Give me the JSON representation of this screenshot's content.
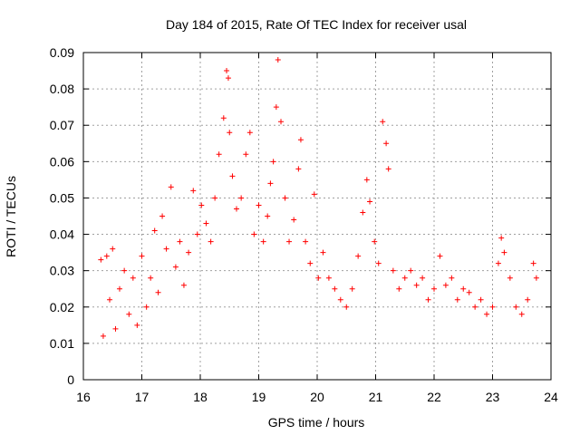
{
  "chart_data": {
    "type": "scatter",
    "title": "Day 184 of 2015, Rate Of TEC Index for receiver usal",
    "xlabel": "GPS time / hours",
    "ylabel": "ROTI / TECUs",
    "xlim": [
      16,
      24
    ],
    "ylim": [
      0,
      0.09
    ],
    "x_ticks": [
      "16",
      "17",
      "18",
      "19",
      "20",
      "21",
      "22",
      "23",
      "24"
    ],
    "y_ticks": [
      "0",
      "0.01",
      "0.02",
      "0.03",
      "0.04",
      "0.05",
      "0.06",
      "0.07",
      "0.08",
      "0.09"
    ],
    "grid": true,
    "marker": "+",
    "color": "#ff0000",
    "series": [
      {
        "name": "ROTI",
        "x": [
          16.3,
          16.34,
          16.4,
          16.45,
          16.5,
          16.55,
          16.62,
          16.7,
          16.78,
          16.85,
          16.92,
          17.0,
          17.08,
          17.15,
          17.22,
          17.28,
          17.35,
          17.42,
          17.5,
          17.58,
          17.65,
          17.72,
          17.8,
          17.88,
          17.95,
          18.02,
          18.1,
          18.18,
          18.25,
          18.32,
          18.4,
          18.45,
          18.48,
          18.5,
          18.55,
          18.62,
          18.7,
          18.78,
          18.85,
          18.92,
          19.0,
          19.08,
          19.15,
          19.2,
          19.25,
          19.3,
          19.33,
          19.38,
          19.45,
          19.52,
          19.6,
          19.68,
          19.72,
          19.8,
          19.88,
          19.95,
          20.02,
          20.1,
          20.2,
          20.3,
          20.4,
          20.5,
          20.6,
          20.7,
          20.78,
          20.85,
          20.9,
          20.98,
          21.05,
          21.12,
          21.18,
          21.22,
          21.3,
          21.4,
          21.5,
          21.6,
          21.7,
          21.8,
          21.9,
          22.0,
          22.1,
          22.2,
          22.3,
          22.4,
          22.5,
          22.6,
          22.7,
          22.8,
          22.9,
          23.0,
          23.1,
          23.15,
          23.2,
          23.3,
          23.4,
          23.5,
          23.6,
          23.7,
          23.75
        ],
        "y": [
          0.033,
          0.012,
          0.034,
          0.022,
          0.036,
          0.014,
          0.025,
          0.03,
          0.018,
          0.028,
          0.015,
          0.034,
          0.02,
          0.028,
          0.041,
          0.024,
          0.045,
          0.036,
          0.053,
          0.031,
          0.038,
          0.026,
          0.035,
          0.052,
          0.04,
          0.048,
          0.043,
          0.038,
          0.05,
          0.062,
          0.072,
          0.085,
          0.083,
          0.068,
          0.056,
          0.047,
          0.05,
          0.062,
          0.068,
          0.04,
          0.048,
          0.038,
          0.045,
          0.054,
          0.06,
          0.075,
          0.088,
          0.071,
          0.05,
          0.038,
          0.044,
          0.058,
          0.066,
          0.038,
          0.032,
          0.051,
          0.028,
          0.035,
          0.028,
          0.025,
          0.022,
          0.02,
          0.025,
          0.034,
          0.046,
          0.055,
          0.049,
          0.038,
          0.032,
          0.071,
          0.065,
          0.058,
          0.03,
          0.025,
          0.028,
          0.03,
          0.026,
          0.028,
          0.022,
          0.025,
          0.034,
          0.026,
          0.028,
          0.022,
          0.025,
          0.024,
          0.02,
          0.022,
          0.018,
          0.02,
          0.032,
          0.039,
          0.035,
          0.028,
          0.02,
          0.018,
          0.022,
          0.032,
          0.028
        ]
      }
    ]
  }
}
